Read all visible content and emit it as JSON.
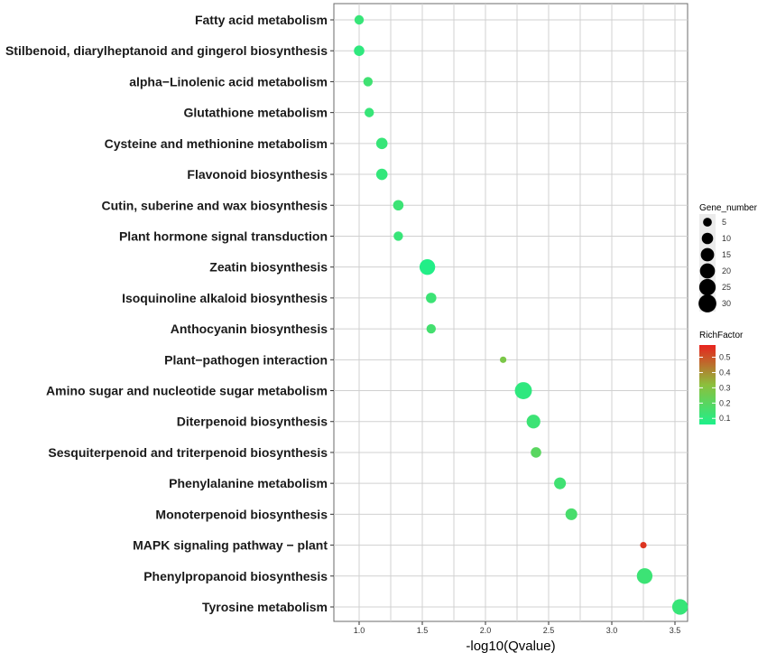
{
  "chart_data": {
    "type": "scatter",
    "xlabel": "-log10(Qvalue)",
    "ylabel": "",
    "title": "",
    "xlim": [
      0.8,
      3.6
    ],
    "x_ticks": [
      "1.0",
      "1.5",
      "2.0",
      "2.5",
      "3.0",
      "3.5"
    ],
    "grid": true,
    "points": [
      {
        "pathway": "Fatty acid metabolism",
        "x": 1.0,
        "gene_number": 6,
        "rich_factor": 0.12
      },
      {
        "pathway": "Stilbenoid, diarylheptanoid and gingerol biosynthesis",
        "x": 1.0,
        "gene_number": 8,
        "rich_factor": 0.1
      },
      {
        "pathway": "alpha−Linolenic acid metabolism",
        "x": 1.07,
        "gene_number": 6,
        "rich_factor": 0.14
      },
      {
        "pathway": "Glutathione metabolism",
        "x": 1.08,
        "gene_number": 6,
        "rich_factor": 0.12
      },
      {
        "pathway": "Cysteine and methionine metabolism",
        "x": 1.18,
        "gene_number": 10,
        "rich_factor": 0.12
      },
      {
        "pathway": "Flavonoid biosynthesis",
        "x": 1.18,
        "gene_number": 10,
        "rich_factor": 0.11
      },
      {
        "pathway": "Cutin, suberine and wax biosynthesis",
        "x": 1.31,
        "gene_number": 8,
        "rich_factor": 0.13
      },
      {
        "pathway": "Plant hormone signal transduction",
        "x": 1.31,
        "gene_number": 6,
        "rich_factor": 0.12
      },
      {
        "pathway": "Zeatin biosynthesis",
        "x": 1.54,
        "gene_number": 22,
        "rich_factor": 0.07
      },
      {
        "pathway": "Isoquinoline alkaloid biosynthesis",
        "x": 1.57,
        "gene_number": 8,
        "rich_factor": 0.13
      },
      {
        "pathway": "Anthocyanin biosynthesis",
        "x": 1.57,
        "gene_number": 6,
        "rich_factor": 0.15
      },
      {
        "pathway": "Plant−pathogen interaction",
        "x": 2.14,
        "gene_number": 2,
        "rich_factor": 0.28
      },
      {
        "pathway": "Amino sugar and nucleotide sugar metabolism",
        "x": 2.3,
        "gene_number": 27,
        "rich_factor": 0.1
      },
      {
        "pathway": "Diterpenoid biosynthesis",
        "x": 2.38,
        "gene_number": 16,
        "rich_factor": 0.13
      },
      {
        "pathway": "Sesquiterpenoid and triterpenoid biosynthesis",
        "x": 2.4,
        "gene_number": 8,
        "rich_factor": 0.2
      },
      {
        "pathway": "Phenylalanine metabolism",
        "x": 2.59,
        "gene_number": 11,
        "rich_factor": 0.14
      },
      {
        "pathway": "Monoterpenoid biosynthesis",
        "x": 2.68,
        "gene_number": 11,
        "rich_factor": 0.16
      },
      {
        "pathway": "MAPK signaling pathway − plant",
        "x": 3.25,
        "gene_number": 2,
        "rich_factor": 0.55
      },
      {
        "pathway": "Phenylpropanoid biosynthesis",
        "x": 3.26,
        "gene_number": 22,
        "rich_factor": 0.13
      },
      {
        "pathway": "Tyrosine metabolism",
        "x": 3.54,
        "gene_number": 22,
        "rich_factor": 0.12
      }
    ],
    "legend_size": {
      "title": "Gene_number",
      "entries": [
        "5",
        "10",
        "15",
        "20",
        "25",
        "30"
      ],
      "values": [
        5,
        10,
        15,
        20,
        25,
        30
      ]
    },
    "legend_color": {
      "title": "RichFactor",
      "labels": [
        "0.5",
        "0.4",
        "0.3",
        "0.2",
        "0.1"
      ],
      "values": [
        0.5,
        0.4,
        0.3,
        0.2,
        0.1
      ],
      "range": [
        0.06,
        0.58
      ],
      "low_color": "#1ef08a",
      "mid_color": "#8cbf3c",
      "high_color": "#e8231e"
    },
    "legend_placement": "right",
    "panel_background": "#ffffff",
    "grid_color": "#d0d0d0"
  }
}
